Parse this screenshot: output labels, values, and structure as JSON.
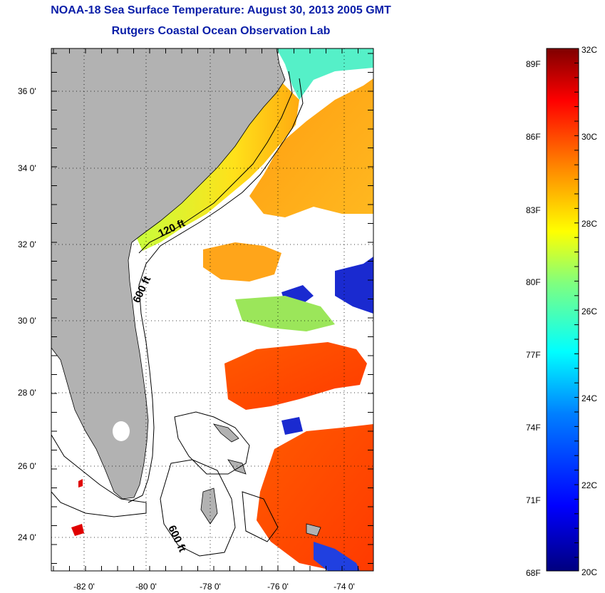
{
  "title": "NOAA-18 Sea Surface Temperature:  August 30, 2013 2005 GMT",
  "subtitle": "Rutgers Coastal Ocean Observation Lab",
  "lat_labels": [
    "36 0'",
    "34 0'",
    "32 0'",
    "30 0'",
    "28 0'",
    "26 0'",
    "24 0'"
  ],
  "lon_labels": [
    "-82 0'",
    "-80 0'",
    "-78 0'",
    "-76 0'",
    "-74 0'"
  ],
  "contour_labels": [
    "120 ft",
    "600 ft",
    "600 ft"
  ],
  "colorbar": {
    "fahrenheit": [
      "89F",
      "86F",
      "83F",
      "80F",
      "77F",
      "74F",
      "71F",
      "68F"
    ],
    "celsius": [
      "32C",
      "30C",
      "28C",
      "26C",
      "24C",
      "22C",
      "20C"
    ],
    "colors": [
      "#00007f",
      "#0000ff",
      "#007fff",
      "#00ffff",
      "#7fff7f",
      "#ffff00",
      "#ff7f00",
      "#ff0000",
      "#7f0000"
    ]
  },
  "colors": {
    "land": "#b2b2b2",
    "cloud": "#ffffff",
    "title": "#0a1ea8"
  }
}
